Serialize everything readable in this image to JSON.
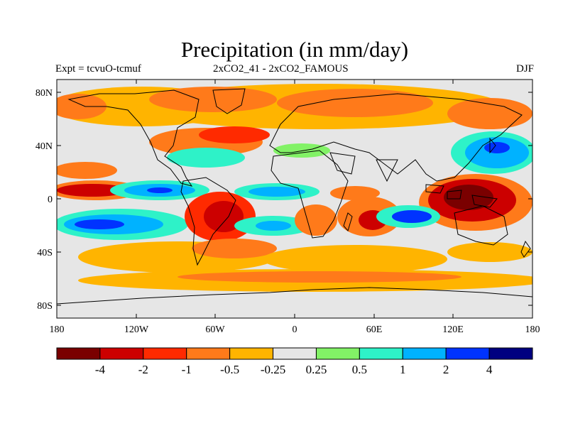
{
  "title": "Precipitation (in mm/day)",
  "subtitle_left": "Expt = tcvuO-tcmuf",
  "subtitle_center": "2xCO2_41 - 2xCO2_FAMOUS",
  "subtitle_right": "DJF",
  "map": {
    "lat_ticks": [
      "80N",
      "40N",
      "0",
      "40S",
      "80S"
    ],
    "lon_ticks": [
      "180",
      "120W",
      "60W",
      "0",
      "60E",
      "120E",
      "180"
    ],
    "background_color": "#e6e6e6",
    "coastline_color": "#000000"
  },
  "colorbar": {
    "colors": [
      "#7a0000",
      "#cc0000",
      "#ff2a00",
      "#ff7a1a",
      "#ffb400",
      "#e6e6e6",
      "#82f266",
      "#2ef2c8",
      "#00b2ff",
      "#0033ff",
      "#000080"
    ],
    "labels": [
      "-4",
      "-2",
      "-1",
      "-0.5",
      "-0.25",
      "0.25",
      "0.5",
      "1",
      "2",
      "4"
    ]
  }
}
